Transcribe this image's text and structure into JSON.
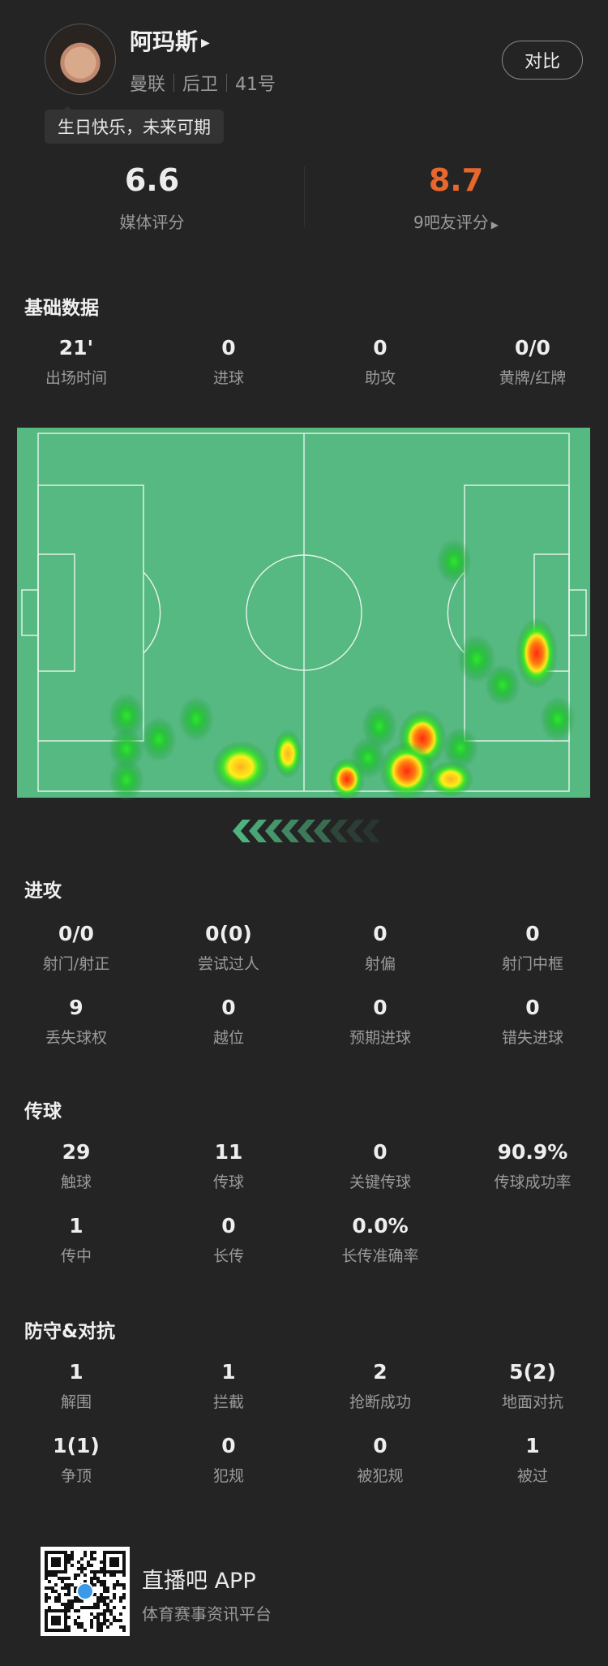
{
  "player": {
    "name": "阿玛斯",
    "team": "曼联",
    "position": "后卫",
    "number": "41号",
    "birthday_note": "生日快乐，未来可期",
    "compare_label": "对比"
  },
  "ratings": {
    "media": {
      "value": "6.6",
      "label": "媒体评分"
    },
    "fans": {
      "value": "8.7",
      "label": "9吧友评分",
      "color": "#e8672c"
    }
  },
  "sections": {
    "basic": {
      "title": "基础数据",
      "stats": [
        {
          "value": "21'",
          "label": "出场时间"
        },
        {
          "value": "0",
          "label": "进球"
        },
        {
          "value": "0",
          "label": "助攻"
        },
        {
          "value": "0/0",
          "label": "黄牌/红牌"
        }
      ]
    },
    "attack": {
      "title": "进攻",
      "stats": [
        {
          "value": "0/0",
          "label": "射门/射正"
        },
        {
          "value": "0(0)",
          "label": "尝试过人"
        },
        {
          "value": "0",
          "label": "射偏"
        },
        {
          "value": "0",
          "label": "射门中框"
        },
        {
          "value": "9",
          "label": "丢失球权"
        },
        {
          "value": "0",
          "label": "越位"
        },
        {
          "value": "0",
          "label": "预期进球"
        },
        {
          "value": "0",
          "label": "错失进球"
        }
      ]
    },
    "passing": {
      "title": "传球",
      "stats": [
        {
          "value": "29",
          "label": "触球"
        },
        {
          "value": "11",
          "label": "传球"
        },
        {
          "value": "0",
          "label": "关键传球"
        },
        {
          "value": "90.9%",
          "label": "传球成功率"
        },
        {
          "value": "1",
          "label": "传中"
        },
        {
          "value": "0",
          "label": "长传"
        },
        {
          "value": "0.0%",
          "label": "长传准确率"
        }
      ]
    },
    "defense": {
      "title": "防守&对抗",
      "stats": [
        {
          "value": "1",
          "label": "解围"
        },
        {
          "value": "1",
          "label": "拦截"
        },
        {
          "value": "2",
          "label": "抢断成功"
        },
        {
          "value": "5(2)",
          "label": "地面对抗"
        },
        {
          "value": "1(1)",
          "label": "争顶"
        },
        {
          "value": "0",
          "label": "犯规"
        },
        {
          "value": "0",
          "label": "被犯规"
        },
        {
          "value": "1",
          "label": "被过"
        }
      ]
    }
  },
  "heatmap": {
    "pitch_color": "#56b981",
    "attack_direction": "left"
  },
  "footer": {
    "app_name": "直播吧 APP",
    "slogan": "体育赛事资讯平台"
  }
}
